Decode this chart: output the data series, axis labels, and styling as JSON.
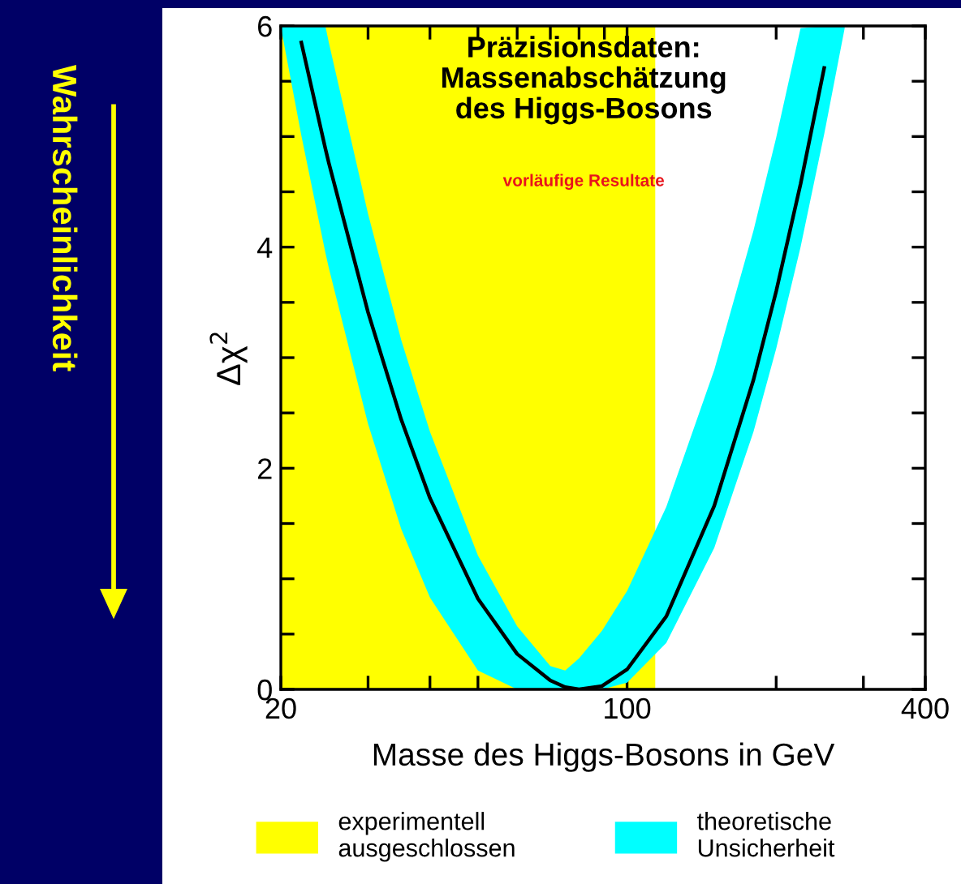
{
  "chart_data": {
    "type": "line",
    "title": "Präzisionsdaten:\nMassenabschätzung\ndes Higgs-Bosons",
    "subtitle": "vorläufige Resultate",
    "xlabel": "Masse des Higgs-Bosons in GeV",
    "ylabel": "Δχ$^{2}$",
    "annotations": [
      "Wahrscheinlichkeit"
    ],
    "log": "x",
    "xlim": [
      20,
      400
    ],
    "xticks": [
      20,
      {
        "value": 30,
        "label": null
      },
      {
        "value": 40,
        "label": null
      },
      {
        "value": 50,
        "label": null
      },
      {
        "value": 60,
        "label": null
      },
      {
        "value": 70,
        "label": null
      },
      {
        "value": 80,
        "label": null
      },
      {
        "value": 90,
        "label": null
      },
      100,
      {
        "value": 200,
        "label": null
      },
      {
        "value": 300,
        "label": null
      },
      400
    ],
    "ylim": [
      0,
      6
    ],
    "yticks": [
      0,
      {
        "value": 0.5,
        "label": null
      },
      {
        "value": 1,
        "label": null
      },
      {
        "value": 1.5,
        "label": null
      },
      2,
      {
        "value": 2.5,
        "label": null
      },
      {
        "value": 3,
        "label": null
      },
      {
        "value": 3.5,
        "label": null
      },
      4,
      {
        "value": 4.5,
        "label": null
      },
      {
        "value": 5,
        "label": null
      },
      {
        "value": 5.5,
        "label": null
      },
      6
    ],
    "bands": [
      {
        "axis": "x",
        "from": 20,
        "to": 114,
        "label": "experimentell\nausgeschlossen",
        "color": "#ffff00"
      }
    ],
    "series": [
      {
        "name": "theoretische\nUnsicherheit",
        "color": "#000000",
        "x": [
          20,
          22,
          24.6,
          25,
          30,
          35,
          40,
          50,
          60,
          70,
          75,
          80,
          89,
          100,
          120,
          150,
          180,
          200,
          224,
          250,
          275
        ],
        "values": [
          null,
          5.85,
          4.89,
          4.76,
          3.41,
          2.44,
          1.73,
          0.82,
          0.32,
          0.08,
          0.02,
          0,
          0.03,
          0.18,
          0.66,
          1.66,
          2.8,
          3.6,
          4.57,
          5.62,
          null
        ],
        "lower": [
          5.99,
          5.01,
          3.95,
          3.81,
          2.4,
          1.45,
          0.83,
          0.17,
          0,
          0,
          0,
          0,
          0,
          0.06,
          0.42,
          1.28,
          2.33,
          3.08,
          4.0,
          5.02,
          5.98
        ],
        "upper": [
          6,
          6,
          6,
          5.85,
          4.3,
          3.16,
          2.33,
          1.21,
          0.57,
          0.21,
          0.17,
          0.28,
          0.53,
          0.89,
          1.65,
          2.89,
          4.15,
          4.99,
          5.98,
          6,
          6
        ]
      }
    ],
    "grid": false,
    "legend": "bottom"
  }
}
